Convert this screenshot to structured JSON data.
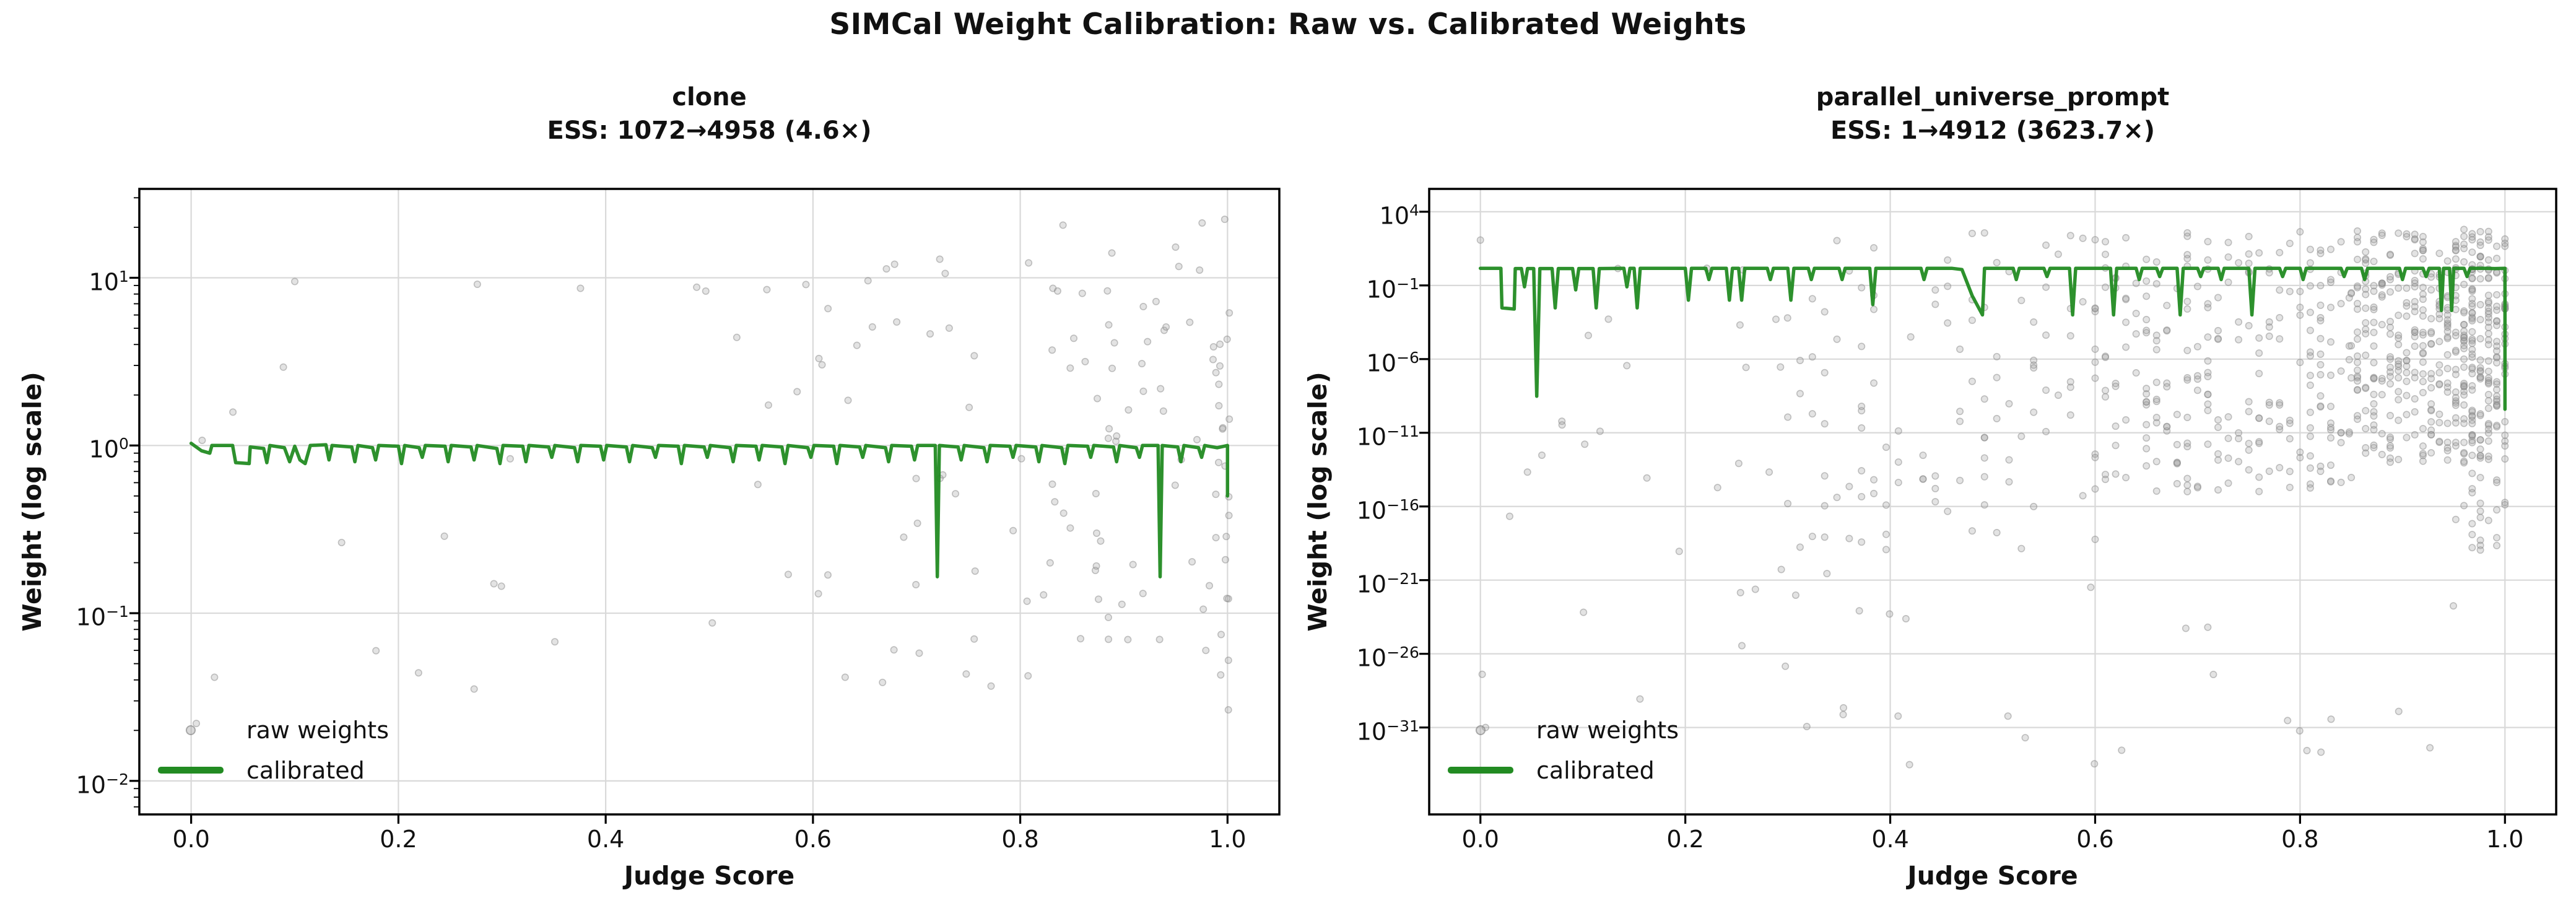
{
  "suptitle": "SIMCal Weight Calibration: Raw vs. Calibrated Weights",
  "colors": {
    "calibrated_green": "#228B22",
    "raw_point_fill": "#9a9a9a",
    "raw_point_edge": "#8a8a8a",
    "grid": "#d9d9d9",
    "spine": "#000000",
    "text": "#111111"
  },
  "chart_data": [
    {
      "type": "scatter",
      "title": "clone",
      "subtitle": "ESS: 1072→4958 (4.6×)",
      "xlabel": "Judge Score",
      "ylabel": "Weight (log scale)",
      "legend": [
        "raw weights",
        "calibrated"
      ],
      "legend_position": "lower left",
      "grid": true,
      "xlim": [
        -0.05,
        1.05
      ],
      "x_ticks": [
        "0.0",
        "0.2",
        "0.4",
        "0.6",
        "0.8",
        "1.0"
      ],
      "x_tick_values": [
        0.0,
        0.2,
        0.4,
        0.6,
        0.8,
        1.0
      ],
      "y_scale": "log",
      "ylog_lim": [
        -2.2,
        1.53
      ],
      "y_tick_exponents": [
        1,
        0,
        -1,
        -2
      ],
      "y_minor_ticks": true,
      "seed": 1234,
      "calibrated_line": [
        [
          0.0,
          1.03
        ],
        [
          0.01,
          0.93
        ],
        [
          0.018,
          0.9
        ],
        [
          0.02,
          1.0
        ],
        [
          0.04,
          1.0
        ],
        [
          0.043,
          0.79
        ],
        [
          0.056,
          0.78
        ],
        [
          0.057,
          0.98
        ],
        [
          0.07,
          0.96
        ],
        [
          0.073,
          0.79
        ],
        [
          0.076,
          1.0
        ],
        [
          0.09,
          0.97
        ],
        [
          0.095,
          0.8
        ],
        [
          0.1,
          0.99
        ],
        [
          0.105,
          0.82
        ],
        [
          0.11,
          0.78
        ],
        [
          0.115,
          1.0
        ],
        [
          0.13,
          1.01
        ],
        [
          0.133,
          0.82
        ],
        [
          0.136,
          1.0
        ],
        [
          0.155,
          0.98
        ],
        [
          0.158,
          0.8
        ],
        [
          0.161,
          1.0
        ],
        [
          0.175,
          0.97
        ],
        [
          0.178,
          0.82
        ],
        [
          0.181,
          1.0
        ],
        [
          0.2,
          0.99
        ],
        [
          0.203,
          0.78
        ],
        [
          0.206,
          1.0
        ],
        [
          0.22,
          0.97
        ],
        [
          0.223,
          0.85
        ],
        [
          0.226,
          1.0
        ],
        [
          0.245,
          0.99
        ],
        [
          0.248,
          0.8
        ],
        [
          0.251,
          1.0
        ],
        [
          0.27,
          0.98
        ],
        [
          0.273,
          0.82
        ],
        [
          0.276,
          1.0
        ],
        [
          0.295,
          0.96
        ],
        [
          0.298,
          0.78
        ],
        [
          0.301,
          1.0
        ],
        [
          0.32,
          0.99
        ],
        [
          0.323,
          0.8
        ],
        [
          0.326,
          1.0
        ],
        [
          0.345,
          0.98
        ],
        [
          0.348,
          0.85
        ],
        [
          0.351,
          1.0
        ],
        [
          0.37,
          0.97
        ],
        [
          0.373,
          0.8
        ],
        [
          0.376,
          1.0
        ],
        [
          0.395,
          0.99
        ],
        [
          0.398,
          0.82
        ],
        [
          0.401,
          1.0
        ],
        [
          0.42,
          0.98
        ],
        [
          0.423,
          0.8
        ],
        [
          0.426,
          1.0
        ],
        [
          0.445,
          0.97
        ],
        [
          0.448,
          0.85
        ],
        [
          0.451,
          1.0
        ],
        [
          0.47,
          0.99
        ],
        [
          0.473,
          0.78
        ],
        [
          0.476,
          1.0
        ],
        [
          0.495,
          0.98
        ],
        [
          0.498,
          0.85
        ],
        [
          0.501,
          1.0
        ],
        [
          0.52,
          0.97
        ],
        [
          0.523,
          0.8
        ],
        [
          0.526,
          1.0
        ],
        [
          0.545,
          0.99
        ],
        [
          0.548,
          0.82
        ],
        [
          0.551,
          1.0
        ],
        [
          0.57,
          0.98
        ],
        [
          0.573,
          0.78
        ],
        [
          0.576,
          1.0
        ],
        [
          0.595,
          0.97
        ],
        [
          0.598,
          0.85
        ],
        [
          0.601,
          1.0
        ],
        [
          0.62,
          0.99
        ],
        [
          0.623,
          0.78
        ],
        [
          0.626,
          1.0
        ],
        [
          0.645,
          0.98
        ],
        [
          0.648,
          0.85
        ],
        [
          0.651,
          1.0
        ],
        [
          0.67,
          0.97
        ],
        [
          0.673,
          0.8
        ],
        [
          0.676,
          1.0
        ],
        [
          0.695,
          0.99
        ],
        [
          0.698,
          0.82
        ],
        [
          0.701,
          1.0
        ],
        [
          0.718,
          1.0
        ],
        [
          0.72,
          0.165
        ],
        [
          0.722,
          1.0
        ],
        [
          0.74,
          0.98
        ],
        [
          0.743,
          0.82
        ],
        [
          0.746,
          1.0
        ],
        [
          0.765,
          0.97
        ],
        [
          0.768,
          0.8
        ],
        [
          0.771,
          1.0
        ],
        [
          0.79,
          0.99
        ],
        [
          0.793,
          0.85
        ],
        [
          0.796,
          1.0
        ],
        [
          0.815,
          0.98
        ],
        [
          0.818,
          0.8
        ],
        [
          0.821,
          1.0
        ],
        [
          0.84,
          0.97
        ],
        [
          0.843,
          0.78
        ],
        [
          0.846,
          1.0
        ],
        [
          0.865,
          0.99
        ],
        [
          0.868,
          0.85
        ],
        [
          0.871,
          1.0
        ],
        [
          0.89,
          0.98
        ],
        [
          0.893,
          0.8
        ],
        [
          0.896,
          1.0
        ],
        [
          0.912,
          0.97
        ],
        [
          0.915,
          0.85
        ],
        [
          0.918,
          1.0
        ],
        [
          0.933,
          1.0
        ],
        [
          0.935,
          0.165
        ],
        [
          0.937,
          1.0
        ],
        [
          0.952,
          0.98
        ],
        [
          0.955,
          0.8
        ],
        [
          0.958,
          1.0
        ],
        [
          0.972,
          0.97
        ],
        [
          0.975,
          0.85
        ],
        [
          0.978,
          1.0
        ],
        [
          0.99,
          0.97
        ],
        [
          1.0,
          1.0
        ],
        [
          1.0,
          0.5
        ]
      ],
      "raw_scatter_clusters": [
        {
          "count": 20,
          "x": [
            0.0,
            0.55
          ],
          "logy": [
            -1.7,
            1.0
          ]
        },
        {
          "count": 45,
          "x": [
            0.55,
            0.83
          ],
          "logy": [
            -1.6,
            1.15
          ]
        },
        {
          "count": 70,
          "x": [
            0.83,
            1.005
          ],
          "logy": [
            -1.35,
            1.35
          ]
        },
        {
          "count": 16,
          "x": [
            0.985,
            1.002
          ],
          "logy": [
            -1.6,
            1.3
          ]
        }
      ],
      "raw_scatter_extra": [
        [
          0.005,
          0.022
        ],
        [
          0.1,
          9.5
        ]
      ]
    },
    {
      "type": "scatter",
      "title": "parallel_universe_prompt",
      "subtitle": "ESS: 1→4912 (3623.7×)",
      "xlabel": "Judge Score",
      "ylabel": "Weight (log scale)",
      "legend": [
        "raw weights",
        "calibrated"
      ],
      "legend_position": "lower left",
      "grid": true,
      "xlim": [
        -0.05,
        1.05
      ],
      "x_ticks": [
        "0.0",
        "0.2",
        "0.4",
        "0.6",
        "0.8",
        "1.0"
      ],
      "x_tick_values": [
        0.0,
        0.2,
        0.4,
        0.6,
        0.8,
        1.0
      ],
      "y_scale": "log",
      "ylog_lim": [
        -36.9,
        5.55
      ],
      "y_tick_exponents": [
        4,
        -1,
        -6,
        -11,
        -16,
        -21,
        -26,
        -31
      ],
      "y_minor_ticks": false,
      "seed": 987,
      "calibrated_line": [
        [
          0.0,
          1.45
        ],
        [
          0.02,
          1.45
        ],
        [
          0.021,
          0.003
        ],
        [
          0.033,
          0.0025
        ],
        [
          0.034,
          1.4
        ],
        [
          0.04,
          1.4
        ],
        [
          0.043,
          0.08
        ],
        [
          0.046,
          1.4
        ],
        [
          0.052,
          1.4
        ],
        [
          0.055,
          3e-09
        ],
        [
          0.058,
          1.4
        ],
        [
          0.07,
          1.4
        ],
        [
          0.073,
          0.003
        ],
        [
          0.076,
          1.4
        ],
        [
          0.09,
          1.4
        ],
        [
          0.093,
          0.05
        ],
        [
          0.096,
          1.4
        ],
        [
          0.11,
          1.4
        ],
        [
          0.113,
          0.003
        ],
        [
          0.116,
          1.4
        ],
        [
          0.14,
          1.45
        ],
        [
          0.143,
          0.08
        ],
        [
          0.146,
          1.45
        ],
        [
          0.15,
          1.45
        ],
        [
          0.153,
          0.003
        ],
        [
          0.156,
          1.45
        ],
        [
          0.2,
          1.45
        ],
        [
          0.203,
          0.01
        ],
        [
          0.206,
          1.45
        ],
        [
          0.22,
          1.45
        ],
        [
          0.223,
          0.25
        ],
        [
          0.226,
          1.45
        ],
        [
          0.24,
          1.45
        ],
        [
          0.243,
          0.01
        ],
        [
          0.246,
          1.45
        ],
        [
          0.252,
          1.45
        ],
        [
          0.255,
          0.01
        ],
        [
          0.258,
          1.45
        ],
        [
          0.28,
          1.45
        ],
        [
          0.283,
          0.25
        ],
        [
          0.286,
          1.45
        ],
        [
          0.3,
          1.45
        ],
        [
          0.303,
          0.01
        ],
        [
          0.306,
          1.45
        ],
        [
          0.32,
          1.45
        ],
        [
          0.323,
          0.25
        ],
        [
          0.326,
          1.45
        ],
        [
          0.35,
          1.45
        ],
        [
          0.353,
          0.25
        ],
        [
          0.356,
          1.45
        ],
        [
          0.38,
          1.45
        ],
        [
          0.383,
          0.005
        ],
        [
          0.386,
          1.45
        ],
        [
          0.43,
          1.45
        ],
        [
          0.433,
          0.25
        ],
        [
          0.436,
          1.45
        ],
        [
          0.46,
          1.45
        ],
        [
          0.47,
          1.2
        ],
        [
          0.48,
          0.02
        ],
        [
          0.49,
          0.001
        ],
        [
          0.492,
          1.45
        ],
        [
          0.52,
          1.45
        ],
        [
          0.523,
          0.25
        ],
        [
          0.526,
          1.45
        ],
        [
          0.55,
          1.45
        ],
        [
          0.553,
          0.4
        ],
        [
          0.556,
          1.45
        ],
        [
          0.575,
          1.45
        ],
        [
          0.578,
          0.001
        ],
        [
          0.581,
          1.45
        ],
        [
          0.615,
          1.45
        ],
        [
          0.618,
          0.001
        ],
        [
          0.621,
          1.45
        ],
        [
          0.64,
          1.45
        ],
        [
          0.643,
          0.25
        ],
        [
          0.646,
          1.45
        ],
        [
          0.66,
          1.45
        ],
        [
          0.663,
          0.4
        ],
        [
          0.666,
          1.45
        ],
        [
          0.68,
          1.45
        ],
        [
          0.683,
          0.001
        ],
        [
          0.686,
          1.45
        ],
        [
          0.7,
          1.45
        ],
        [
          0.703,
          0.4
        ],
        [
          0.706,
          1.45
        ],
        [
          0.72,
          1.45
        ],
        [
          0.723,
          0.25
        ],
        [
          0.726,
          1.45
        ],
        [
          0.75,
          1.45
        ],
        [
          0.753,
          0.001
        ],
        [
          0.756,
          1.45
        ],
        [
          0.78,
          1.45
        ],
        [
          0.783,
          0.4
        ],
        [
          0.786,
          1.45
        ],
        [
          0.8,
          1.45
        ],
        [
          0.803,
          0.25
        ],
        [
          0.806,
          1.45
        ],
        [
          0.84,
          1.45
        ],
        [
          0.843,
          0.4
        ],
        [
          0.846,
          1.45
        ],
        [
          0.86,
          1.45
        ],
        [
          0.863,
          0.25
        ],
        [
          0.866,
          1.45
        ],
        [
          0.897,
          1.45
        ],
        [
          0.9,
          0.25
        ],
        [
          0.903,
          1.45
        ],
        [
          0.92,
          1.45
        ],
        [
          0.923,
          0.4
        ],
        [
          0.926,
          1.45
        ],
        [
          0.936,
          1.45
        ],
        [
          0.938,
          0.002
        ],
        [
          0.94,
          1.45
        ],
        [
          0.946,
          1.45
        ],
        [
          0.948,
          0.002
        ],
        [
          0.95,
          1.45
        ],
        [
          0.96,
          1.45
        ],
        [
          0.963,
          0.4
        ],
        [
          0.966,
          1.45
        ],
        [
          0.98,
          1.45
        ],
        [
          0.99,
          1.4
        ],
        [
          1.0,
          1.45
        ],
        [
          1.0,
          4e-10
        ]
      ],
      "raw_scatter_clusters": [
        {
          "count": 28,
          "x": [
            0.0,
            0.3
          ],
          "logy": [
            -31,
            2.2
          ]
        },
        {
          "count": 110,
          "x": [
            0.3,
            0.6
          ],
          "logy": [
            -19,
            2.6
          ],
          "x_step": 0.012
        },
        {
          "count": 250,
          "x": [
            0.6,
            0.85
          ],
          "logy": [
            -15,
            2.8
          ],
          "x_step": 0.01
        },
        {
          "count": 400,
          "x": [
            0.85,
            1.003
          ],
          "logy": [
            -13,
            2.9
          ],
          "x_step": 0.008
        },
        {
          "count": 90,
          "x": [
            0.95,
            1.003
          ],
          "logy": [
            -19,
            2.0
          ],
          "x_step": 0.008
        },
        {
          "count": 28,
          "x": [
            0.25,
            1.0
          ],
          "logy": [
            -34,
            -20
          ]
        }
      ],
      "raw_scatter_extra": [
        [
          0.0,
          120
        ],
        [
          0.005,
          1e-31
        ],
        [
          0.06,
          3e-13
        ]
      ]
    }
  ]
}
